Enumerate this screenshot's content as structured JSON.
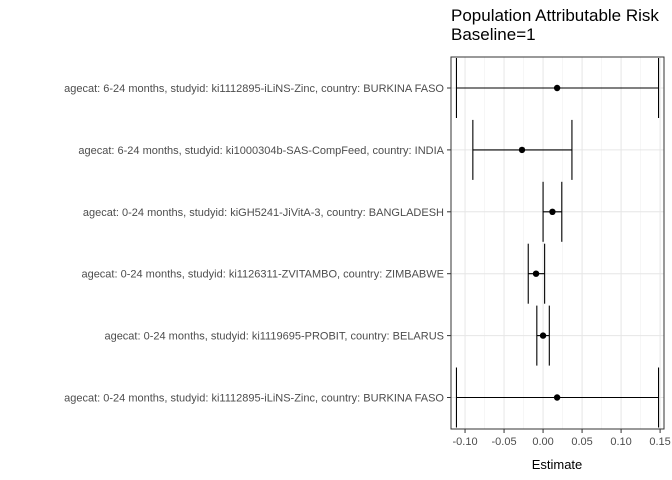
{
  "chart_data": {
    "type": "forest",
    "title": "Population Attributable Risk",
    "subtitle": "Baseline=1",
    "xlabel": "Estimate",
    "ylabel": "",
    "xlim": [
      -0.118,
      0.155
    ],
    "xticks": [
      -0.1,
      -0.05,
      0.0,
      0.05,
      0.1,
      0.15
    ],
    "xtick_labels": [
      "-0.10",
      "-0.05",
      "0.00",
      "0.05",
      "0.10",
      "0.15"
    ],
    "grid": true,
    "rows": [
      {
        "label": "agecat: 6-24 months, studyid: ki1112895-iLiNS-Zinc, country: BURKINA FASO",
        "estimate": 0.018,
        "lower": -0.111,
        "upper": 0.148
      },
      {
        "label": "agecat: 6-24 months, studyid: ki1000304b-SAS-CompFeed, country: INDIA",
        "estimate": -0.027,
        "lower": -0.09,
        "upper": 0.037
      },
      {
        "label": "agecat: 0-24 months, studyid: kiGH5241-JiVitA-3, country: BANGLADESH",
        "estimate": 0.012,
        "lower": 0.0,
        "upper": 0.024
      },
      {
        "label": "agecat: 0-24 months, studyid: ki1126311-ZVITAMBO, country: ZIMBABWE",
        "estimate": -0.009,
        "lower": -0.019,
        "upper": 0.002
      },
      {
        "label": "agecat: 0-24 months, studyid: ki1119695-PROBIT, country: BELARUS",
        "estimate": 0.0,
        "lower": -0.008,
        "upper": 0.008
      },
      {
        "label": "agecat: 0-24 months, studyid: ki1112895-iLiNS-Zinc, country: BURKINA FASO",
        "estimate": 0.018,
        "lower": -0.111,
        "upper": 0.148
      }
    ]
  }
}
